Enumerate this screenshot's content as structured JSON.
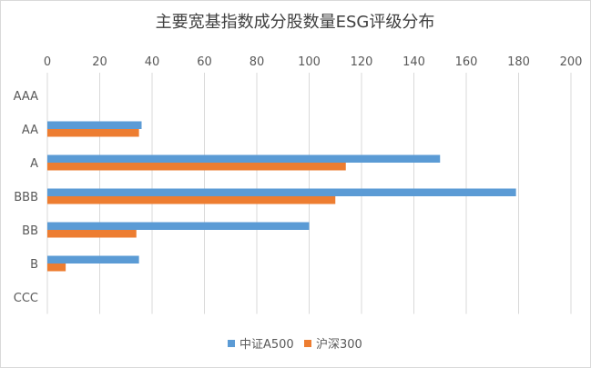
{
  "chart_data": {
    "type": "bar",
    "orientation": "horizontal",
    "title": "主要宽基指数成分股数量ESG评级分布",
    "categories": [
      "AAA",
      "AA",
      "A",
      "BBB",
      "BB",
      "B",
      "CCC"
    ],
    "series": [
      {
        "name": "中证A500",
        "color": "#5B9BD5",
        "values": [
          0,
          36,
          150,
          179,
          100,
          35,
          0
        ]
      },
      {
        "name": "沪深300",
        "color": "#ED7D31",
        "values": [
          0,
          35,
          114,
          110,
          34,
          7,
          0
        ]
      }
    ],
    "xlim": [
      0,
      200
    ],
    "xticks": [
      "0",
      "20",
      "40",
      "60",
      "80",
      "100",
      "120",
      "140",
      "160",
      "180",
      "200"
    ],
    "xaxis_position": "top",
    "grid": true,
    "legend_position": "bottom"
  }
}
